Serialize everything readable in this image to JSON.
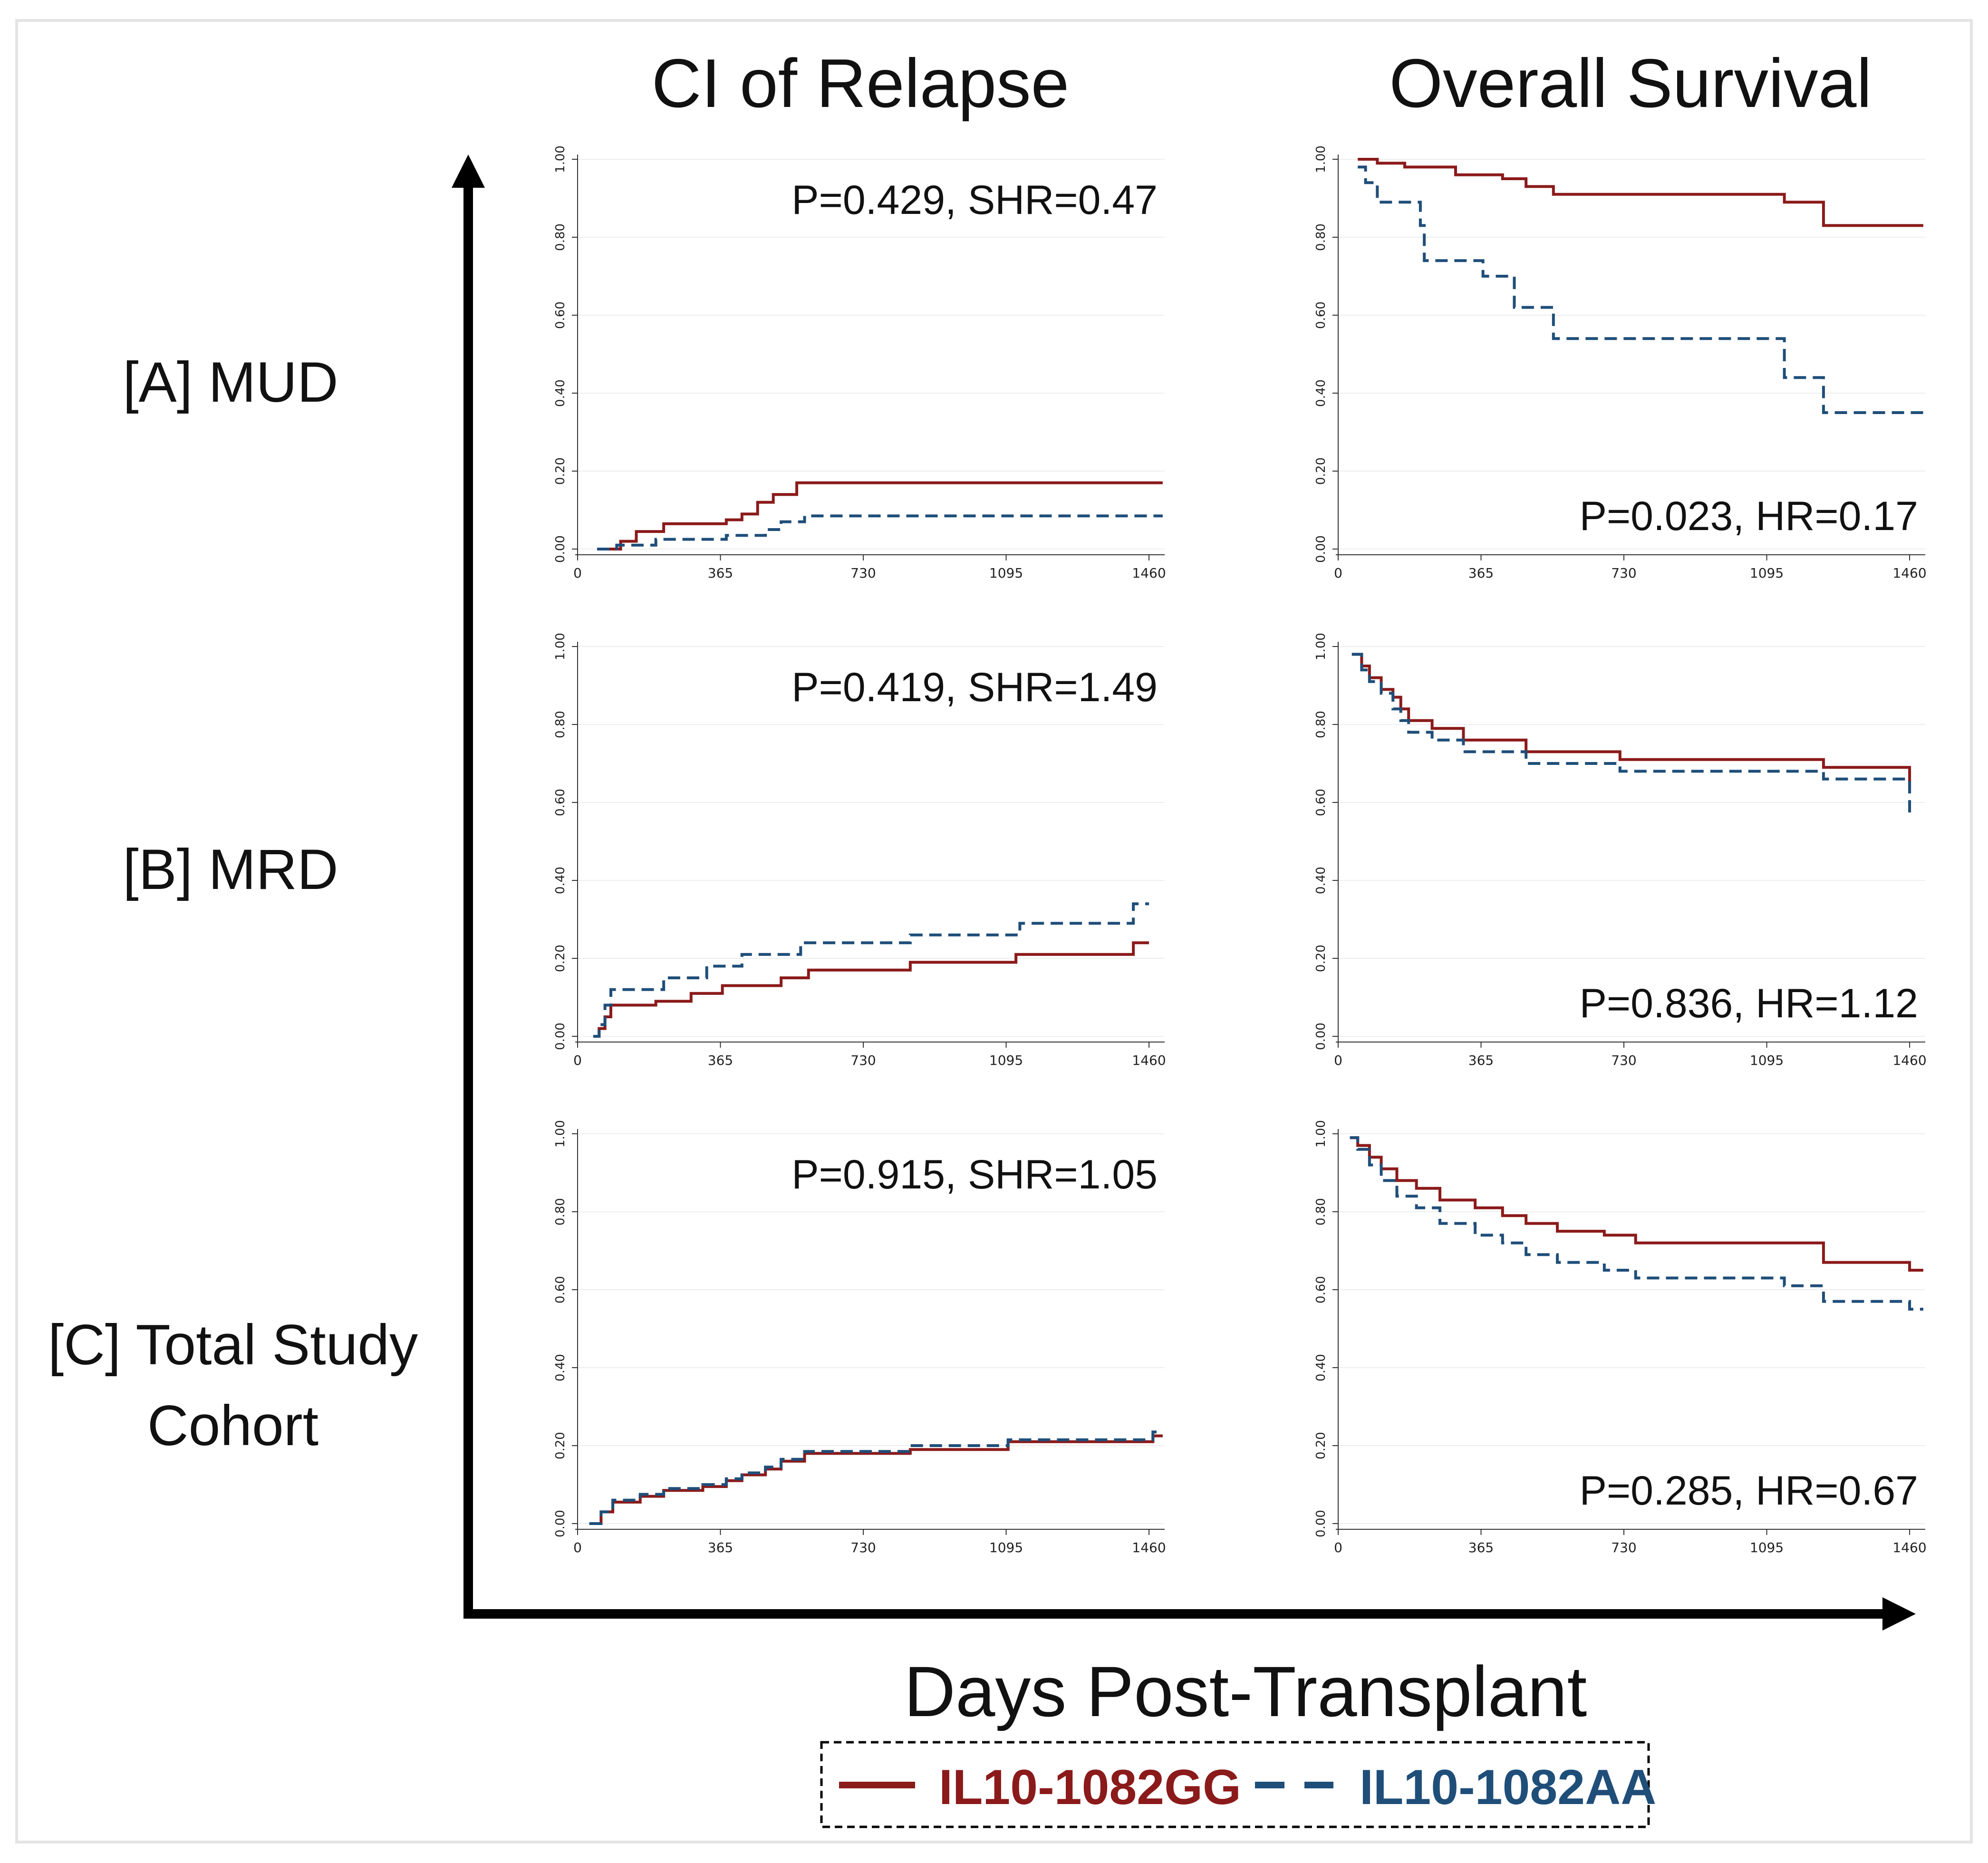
{
  "column_titles": [
    "CI of Relapse",
    "Overall Survival"
  ],
  "row_labels": [
    [
      "[A] MUD"
    ],
    [
      "[B] MRD"
    ],
    [
      "[C] Total Study",
      "Cohort"
    ]
  ],
  "x_axis_title": "Days Post-Transplant",
  "legend": [
    {
      "label": "IL10-1082GG",
      "color": "#8b1a1a",
      "style": "solid"
    },
    {
      "label": "IL10-1082AA",
      "color": "#1f4e79",
      "style": "dashed"
    }
  ],
  "chart_data": [
    {
      "type": "line",
      "panel": "A-relapse",
      "stat": "P=0.429, SHR=0.47",
      "stat_position": "top",
      "x_ticks": [
        0,
        365,
        730,
        1095,
        1460
      ],
      "y_ticks": [
        "0.00",
        "0.20",
        "0.40",
        "0.60",
        "0.80",
        "1.00"
      ],
      "xlim": [
        0,
        1500
      ],
      "ylim": [
        0,
        1
      ],
      "series": [
        {
          "name": "IL10-1082GG",
          "x": [
            50,
            110,
            150,
            220,
            380,
            420,
            460,
            500,
            560,
            1495
          ],
          "y": [
            0,
            0.02,
            0.045,
            0.065,
            0.075,
            0.09,
            0.12,
            0.14,
            0.17,
            0.17
          ]
        },
        {
          "name": "IL10-1082AA",
          "x": [
            50,
            100,
            200,
            380,
            480,
            520,
            580,
            1495
          ],
          "y": [
            0,
            0.01,
            0.025,
            0.035,
            0.05,
            0.07,
            0.085,
            0.085
          ]
        }
      ]
    },
    {
      "type": "line",
      "panel": "A-survival",
      "stat": "P=0.023, HR=0.17",
      "stat_position": "bottom",
      "x_ticks": [
        0,
        365,
        730,
        1095,
        1460
      ],
      "y_ticks": [
        "0.00",
        "0.20",
        "0.40",
        "0.60",
        "0.80",
        "1.00"
      ],
      "xlim": [
        0,
        1500
      ],
      "ylim": [
        0,
        1
      ],
      "series": [
        {
          "name": "IL10-1082GG",
          "x": [
            50,
            100,
            170,
            300,
            420,
            480,
            550,
            1140,
            1240,
            1495
          ],
          "y": [
            1.0,
            0.99,
            0.98,
            0.96,
            0.95,
            0.93,
            0.91,
            0.89,
            0.83,
            0.83
          ]
        },
        {
          "name": "IL10-1082AA",
          "x": [
            50,
            70,
            100,
            210,
            220,
            370,
            450,
            550,
            1140,
            1240,
            1495
          ],
          "y": [
            0.98,
            0.94,
            0.89,
            0.83,
            0.74,
            0.7,
            0.62,
            0.54,
            0.44,
            0.35,
            0.35
          ]
        }
      ]
    },
    {
      "type": "line",
      "panel": "B-relapse",
      "stat": "P=0.419, SHR=1.49",
      "stat_position": "top",
      "x_ticks": [
        0,
        365,
        730,
        1095,
        1460
      ],
      "y_ticks": [
        "0.00",
        "0.20",
        "0.40",
        "0.60",
        "0.80",
        "1.00"
      ],
      "xlim": [
        0,
        1500
      ],
      "ylim": [
        0,
        1
      ],
      "series": [
        {
          "name": "IL10-1082GG",
          "x": [
            40,
            55,
            70,
            85,
            200,
            290,
            370,
            520,
            590,
            850,
            1120,
            1420,
            1460
          ],
          "y": [
            0,
            0.02,
            0.05,
            0.08,
            0.09,
            0.11,
            0.13,
            0.15,
            0.17,
            0.19,
            0.21,
            0.24,
            0.24
          ]
        },
        {
          "name": "IL10-1082AA",
          "x": [
            40,
            55,
            70,
            85,
            220,
            330,
            420,
            570,
            850,
            1130,
            1420,
            1460
          ],
          "y": [
            0,
            0.03,
            0.08,
            0.12,
            0.15,
            0.18,
            0.21,
            0.24,
            0.26,
            0.29,
            0.34,
            0.34
          ]
        }
      ]
    },
    {
      "type": "line",
      "panel": "B-survival",
      "stat": "P=0.836, HR=1.12",
      "stat_position": "bottom",
      "x_ticks": [
        0,
        365,
        730,
        1095,
        1460
      ],
      "y_ticks": [
        "0.00",
        "0.20",
        "0.40",
        "0.60",
        "0.80",
        "1.00"
      ],
      "xlim": [
        0,
        1500
      ],
      "ylim": [
        0,
        1
      ],
      "series": [
        {
          "name": "IL10-1082GG",
          "x": [
            35,
            60,
            80,
            110,
            140,
            160,
            180,
            240,
            320,
            480,
            720,
            1240,
            1460
          ],
          "y": [
            0.98,
            0.95,
            0.92,
            0.89,
            0.87,
            0.84,
            0.81,
            0.79,
            0.76,
            0.73,
            0.71,
            0.69,
            0.63
          ]
        },
        {
          "name": "IL10-1082AA",
          "x": [
            35,
            60,
            80,
            110,
            140,
            160,
            180,
            240,
            320,
            480,
            720,
            1240,
            1460
          ],
          "y": [
            0.98,
            0.94,
            0.91,
            0.88,
            0.84,
            0.81,
            0.78,
            0.76,
            0.73,
            0.7,
            0.68,
            0.66,
            0.56
          ]
        }
      ]
    },
    {
      "type": "line",
      "panel": "C-relapse",
      "stat": "P=0.915, SHR=1.05",
      "stat_position": "top",
      "x_ticks": [
        0,
        365,
        730,
        1095,
        1460
      ],
      "y_ticks": [
        "0.00",
        "0.20",
        "0.40",
        "0.60",
        "0.80",
        "1.00"
      ],
      "xlim": [
        0,
        1500
      ],
      "ylim": [
        0,
        1
      ],
      "series": [
        {
          "name": "IL10-1082GG",
          "x": [
            30,
            60,
            90,
            160,
            220,
            320,
            380,
            420,
            480,
            520,
            580,
            850,
            1100,
            1470,
            1495
          ],
          "y": [
            0,
            0.03,
            0.055,
            0.07,
            0.085,
            0.095,
            0.11,
            0.125,
            0.14,
            0.16,
            0.18,
            0.19,
            0.21,
            0.225,
            0.225
          ]
        },
        {
          "name": "IL10-1082AA",
          "x": [
            30,
            60,
            90,
            160,
            220,
            320,
            380,
            420,
            480,
            520,
            580,
            850,
            1100,
            1470,
            1495
          ],
          "y": [
            0,
            0.03,
            0.06,
            0.075,
            0.09,
            0.1,
            0.115,
            0.13,
            0.145,
            0.165,
            0.185,
            0.2,
            0.215,
            0.235,
            0.235
          ]
        }
      ]
    },
    {
      "type": "line",
      "panel": "C-survival",
      "stat": "P=0.285, HR=0.67",
      "stat_position": "bottom",
      "x_ticks": [
        0,
        365,
        730,
        1095,
        1460
      ],
      "y_ticks": [
        "0.00",
        "0.20",
        "0.40",
        "0.60",
        "0.80",
        "1.00"
      ],
      "xlim": [
        0,
        1500
      ],
      "ylim": [
        0,
        1
      ],
      "series": [
        {
          "name": "IL10-1082GG",
          "x": [
            30,
            50,
            80,
            110,
            150,
            200,
            260,
            350,
            420,
            480,
            560,
            680,
            760,
            1020,
            1240,
            1460,
            1495
          ],
          "y": [
            0.99,
            0.97,
            0.94,
            0.91,
            0.88,
            0.86,
            0.83,
            0.81,
            0.79,
            0.77,
            0.75,
            0.74,
            0.72,
            0.72,
            0.67,
            0.65,
            0.65
          ]
        },
        {
          "name": "IL10-1082AA",
          "x": [
            30,
            50,
            80,
            110,
            150,
            200,
            260,
            350,
            420,
            480,
            560,
            680,
            760,
            1140,
            1240,
            1460,
            1495
          ],
          "y": [
            0.99,
            0.96,
            0.92,
            0.88,
            0.84,
            0.81,
            0.77,
            0.74,
            0.72,
            0.69,
            0.67,
            0.65,
            0.63,
            0.61,
            0.57,
            0.55,
            0.55
          ]
        }
      ]
    }
  ]
}
